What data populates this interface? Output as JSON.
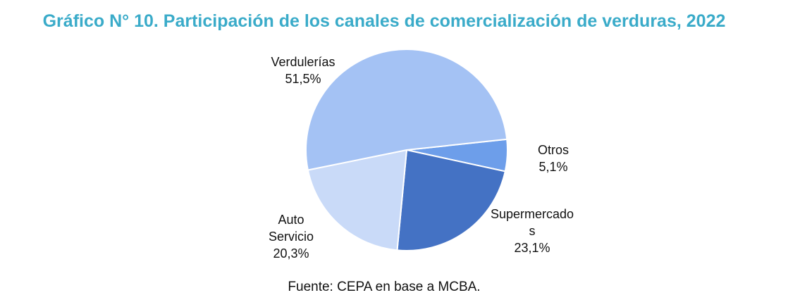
{
  "chart_data": {
    "type": "pie",
    "title": "Gráfico N° 10. Participación de los canales de comercialización de verduras, 2022",
    "slices": [
      {
        "label": "Otros",
        "display": "5,1%",
        "value": 5.1,
        "color": "#6d9eea"
      },
      {
        "label": "Supermercado s",
        "label_lines": [
          "Supermercado",
          "s"
        ],
        "display": "23,1%",
        "value": 23.1,
        "color": "#4472c4"
      },
      {
        "label": "Auto Servicio",
        "label_lines": [
          "Auto",
          "Servicio"
        ],
        "display": "20,3%",
        "value": 20.3,
        "color": "#c9daf8"
      },
      {
        "label": "Verdulerías",
        "label_lines": [
          "Verdulerías"
        ],
        "display": "51,5%",
        "value": 51.5,
        "color": "#a4c2f4"
      }
    ],
    "source": "Fuente: CEPA en base a MCBA."
  }
}
